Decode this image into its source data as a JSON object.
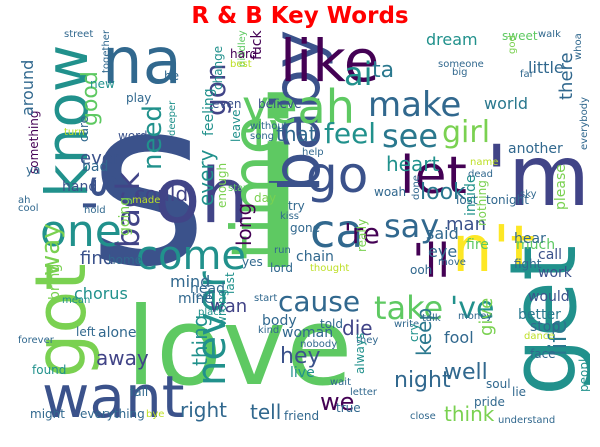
{
  "chart_data": {
    "type": "wordcloud",
    "title": "R & B Key Words",
    "colormap": "viridis",
    "words": [
      {
        "text": "s",
        "color": "#3b528b"
      },
      {
        "text": "i",
        "color": "#5ec962"
      },
      {
        "text": "love",
        "color": "#5ec962"
      },
      {
        "text": "baby",
        "color": "#3b528b"
      },
      {
        "text": "know",
        "color": "#21918c"
      },
      {
        "text": "got",
        "color": "#7ad151"
      },
      {
        "text": "oh",
        "color": "#414487"
      },
      {
        "text": "like",
        "color": "#440154"
      },
      {
        "text": "na",
        "color": "#31688e"
      },
      {
        "text": "'m",
        "color": "#414487"
      },
      {
        "text": "n't",
        "color": "#fde725"
      },
      {
        "text": "get",
        "color": "#21918c"
      },
      {
        "text": "'s",
        "color": "#3b528b"
      },
      {
        "text": "time",
        "color": "#5ec962"
      },
      {
        "text": "yeah",
        "color": "#5ec962"
      },
      {
        "text": "let",
        "color": "#440154"
      },
      {
        "text": "go",
        "color": "#3b528b"
      },
      {
        "text": "ca",
        "color": "#31688e"
      },
      {
        "text": "come",
        "color": "#21918c"
      },
      {
        "text": "want",
        "color": "#3b528b"
      },
      {
        "text": "one",
        "color": "#21918c"
      },
      {
        "text": "never",
        "color": "#21918c"
      },
      {
        "text": "'ll",
        "color": "#440154"
      },
      {
        "text": "make",
        "color": "#31688e"
      },
      {
        "text": "see",
        "color": "#2a788e"
      },
      {
        "text": "girl",
        "color": "#7ad151"
      },
      {
        "text": "say",
        "color": "#31688e"
      },
      {
        "text": "ai",
        "color": "#21918c"
      },
      {
        "text": "back",
        "color": "#414487"
      },
      {
        "text": "cause",
        "color": "#31688e"
      },
      {
        "text": "take",
        "color": "#5ec962"
      },
      {
        "text": "'ve",
        "color": "#21918c"
      },
      {
        "text": "way",
        "color": "#7ad151"
      },
      {
        "text": "'re",
        "color": "#440154"
      },
      {
        "text": "feel",
        "color": "#21918c"
      },
      {
        "text": "need",
        "color": "#21918c"
      },
      {
        "text": "good",
        "color": "#5ec962"
      },
      {
        "text": "gon",
        "color": "#414487"
      },
      {
        "text": "ta",
        "color": "#2a788e"
      },
      {
        "text": "look",
        "color": "#2a788e"
      },
      {
        "text": "heart",
        "color": "#21918c"
      },
      {
        "text": "night",
        "color": "#31688e"
      },
      {
        "text": "tell",
        "color": "#31688e"
      },
      {
        "text": "right",
        "color": "#31688e"
      },
      {
        "text": "keep",
        "color": "#2a788e"
      },
      {
        "text": "we",
        "color": "#440154"
      },
      {
        "text": "hey",
        "color": "#3b528b"
      },
      {
        "text": "well",
        "color": "#31688e"
      },
      {
        "text": "life",
        "color": "#2a788e"
      },
      {
        "text": "think",
        "color": "#7ad151"
      },
      {
        "text": "could",
        "color": "#414487"
      },
      {
        "text": "every",
        "color": "#21918c"
      },
      {
        "text": "long",
        "color": "#440154"
      },
      {
        "text": "that",
        "color": "#31688e"
      },
      {
        "text": "thing",
        "color": "#21918c"
      },
      {
        "text": "wan",
        "color": "#414487"
      },
      {
        "text": "die",
        "color": "#414487"
      },
      {
        "text": "away",
        "color": "#414487"
      },
      {
        "text": "ever",
        "color": "#3b528b"
      },
      {
        "text": "find",
        "color": "#3b528b"
      },
      {
        "text": "mind",
        "color": "#31688e"
      },
      {
        "text": "said",
        "color": "#31688e"
      },
      {
        "text": "eye",
        "color": "#31688e"
      },
      {
        "text": "man",
        "color": "#3b528b"
      },
      {
        "text": "give",
        "color": "#7ad151"
      },
      {
        "text": "there",
        "color": "#31688e"
      },
      {
        "text": "world",
        "color": "#2a788e"
      },
      {
        "text": "little",
        "color": "#31688e"
      },
      {
        "text": "dream",
        "color": "#21918c"
      },
      {
        "text": "fool",
        "color": "#31688e"
      },
      {
        "text": "call",
        "color": "#3b528b"
      },
      {
        "text": "work",
        "color": "#3b528b"
      },
      {
        "text": "would",
        "color": "#3b528b"
      },
      {
        "text": "stop",
        "color": "#31688e"
      },
      {
        "text": "better",
        "color": "#2a788e"
      },
      {
        "text": "fire",
        "color": "#5ec962"
      },
      {
        "text": "much",
        "color": "#5ec962"
      },
      {
        "text": "chorus",
        "color": "#21918c"
      },
      {
        "text": "something",
        "color": "#440154"
      },
      {
        "text": "around",
        "color": "#31688e"
      },
      {
        "text": "street",
        "color": "#31688e"
      },
      {
        "text": "together",
        "color": "#31688e"
      },
      {
        "text": "diddley",
        "color": "#5ec962"
      },
      {
        "text": "hard",
        "color": "#440154"
      },
      {
        "text": "best",
        "color": "#bddf26"
      },
      {
        "text": "fuck",
        "color": "#440154"
      },
      {
        "text": "sweet",
        "color": "#5ec962"
      },
      {
        "text": "walk",
        "color": "#31688e"
      },
      {
        "text": "god",
        "color": "#7ad151"
      },
      {
        "text": "whoa",
        "color": "#31688e"
      },
      {
        "text": "play",
        "color": "#31688e"
      },
      {
        "text": "change",
        "color": "#21918c"
      },
      {
        "text": "even",
        "color": "#3b528b"
      },
      {
        "text": "believe",
        "color": "#3b528b"
      },
      {
        "text": "someone",
        "color": "#31688e"
      },
      {
        "text": "big",
        "color": "#31688e"
      },
      {
        "text": "far",
        "color": "#31688e"
      },
      {
        "text": "he",
        "color": "#31688e"
      },
      {
        "text": "new",
        "color": "#21918c"
      },
      {
        "text": "without",
        "color": "#31688e"
      },
      {
        "text": "song",
        "color": "#31688e"
      },
      {
        "text": "word",
        "color": "#3b528b"
      },
      {
        "text": "care",
        "color": "#31688e"
      },
      {
        "text": "turn",
        "color": "#bddf26"
      },
      {
        "text": "feeling",
        "color": "#21918c"
      },
      {
        "text": "deeper",
        "color": "#21918c"
      },
      {
        "text": "leave",
        "color": "#21918c"
      },
      {
        "text": "help",
        "color": "#31688e"
      },
      {
        "text": "another",
        "color": "#31688e"
      },
      {
        "text": "everybody",
        "color": "#31688e"
      },
      {
        "text": "ya",
        "color": "#31688e"
      },
      {
        "text": "bad",
        "color": "#31688e"
      },
      {
        "text": "hand",
        "color": "#3b528b"
      },
      {
        "text": "ah",
        "color": "#31688e"
      },
      {
        "text": "cool",
        "color": "#31688e"
      },
      {
        "text": "hold",
        "color": "#31688e"
      },
      {
        "text": "made",
        "color": "#bddf26"
      },
      {
        "text": "going",
        "color": "#7ad151"
      },
      {
        "text": "stay",
        "color": "#5ec962"
      },
      {
        "text": "day",
        "color": "#7ad151"
      },
      {
        "text": "try",
        "color": "#31688e"
      },
      {
        "text": "woah",
        "color": "#31688e"
      },
      {
        "text": "done",
        "color": "#31688e"
      },
      {
        "text": "lost",
        "color": "#31688e"
      },
      {
        "text": "tonight",
        "color": "#31688e"
      },
      {
        "text": "sky",
        "color": "#31688e"
      },
      {
        "text": "please",
        "color": "#7ad151"
      },
      {
        "text": "inside",
        "color": "#21918c"
      },
      {
        "text": "hear",
        "color": "#31688e"
      },
      {
        "text": "fight",
        "color": "#31688e"
      },
      {
        "text": "name",
        "color": "#bddf26"
      },
      {
        "text": "dead",
        "color": "#31688e"
      },
      {
        "text": "nothing",
        "color": "#7ad151"
      },
      {
        "text": "kiss",
        "color": "#31688e"
      },
      {
        "text": "gone",
        "color": "#31688e"
      },
      {
        "text": "enough",
        "color": "#7ad151"
      },
      {
        "text": "home",
        "color": "#31688e"
      },
      {
        "text": "run",
        "color": "#31688e"
      },
      {
        "text": "chain",
        "color": "#31688e"
      },
      {
        "text": "lord",
        "color": "#31688e"
      },
      {
        "text": "yes",
        "color": "#31688e"
      },
      {
        "text": "really",
        "color": "#7ad151"
      },
      {
        "text": "thought",
        "color": "#bddf26"
      },
      {
        "text": "ooh",
        "color": "#31688e"
      },
      {
        "text": "move",
        "color": "#31688e"
      },
      {
        "text": "bring",
        "color": "#7ad151"
      },
      {
        "text": "alone",
        "color": "#31688e"
      },
      {
        "text": "head",
        "color": "#31688e"
      },
      {
        "text": "mine",
        "color": "#31688e"
      },
      {
        "text": "real",
        "color": "#31688e"
      },
      {
        "text": "start",
        "color": "#31688e"
      },
      {
        "text": "mean",
        "color": "#21918c"
      },
      {
        "text": "forever",
        "color": "#31688e"
      },
      {
        "text": "left",
        "color": "#31688e"
      },
      {
        "text": "place",
        "color": "#21918c"
      },
      {
        "text": "wrong",
        "color": "#21918c"
      },
      {
        "text": "last",
        "color": "#21918c"
      },
      {
        "text": "body",
        "color": "#31688e"
      },
      {
        "text": "woman",
        "color": "#31688e"
      },
      {
        "text": "told",
        "color": "#31688e"
      },
      {
        "text": "kind",
        "color": "#31688e"
      },
      {
        "text": "they",
        "color": "#31688e"
      },
      {
        "text": "write",
        "color": "#31688e"
      },
      {
        "text": "talk",
        "color": "#31688e"
      },
      {
        "text": "money",
        "color": "#31688e"
      },
      {
        "text": "dance",
        "color": "#bddf26"
      },
      {
        "text": "cry",
        "color": "#21918c"
      },
      {
        "text": "nobody",
        "color": "#31688e"
      },
      {
        "text": "always",
        "color": "#21918c"
      },
      {
        "text": "face",
        "color": "#31688e"
      },
      {
        "text": "fall",
        "color": "#31688e"
      },
      {
        "text": "found",
        "color": "#21918c"
      },
      {
        "text": "might",
        "color": "#31688e"
      },
      {
        "text": "everything",
        "color": "#31688e"
      },
      {
        "text": "bye",
        "color": "#bddf26"
      },
      {
        "text": "friend",
        "color": "#31688e"
      },
      {
        "text": "live",
        "color": "#21918c"
      },
      {
        "text": "wait",
        "color": "#31688e"
      },
      {
        "text": "letter",
        "color": "#31688e"
      },
      {
        "text": "true",
        "color": "#31688e"
      },
      {
        "text": "close",
        "color": "#31688e"
      },
      {
        "text": "soul",
        "color": "#31688e"
      },
      {
        "text": "lie",
        "color": "#31688e"
      },
      {
        "text": "pride",
        "color": "#31688e"
      },
      {
        "text": "understand",
        "color": "#31688e"
      },
      {
        "text": "people",
        "color": "#21918c"
      }
    ]
  }
}
